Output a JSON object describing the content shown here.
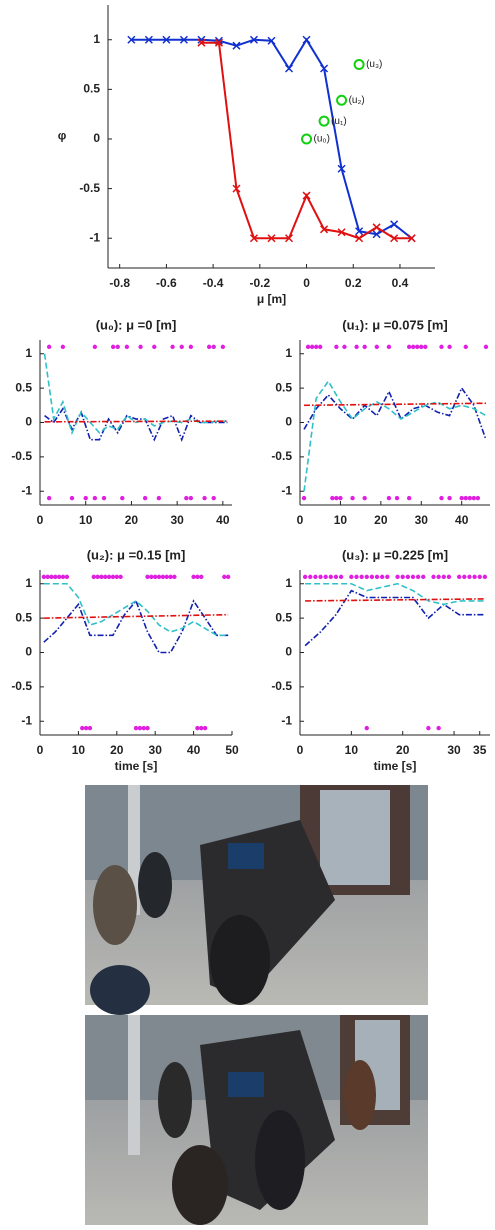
{
  "chart_data": [
    {
      "type": "line",
      "xlabel": "μ [m]",
      "ylabel": "φ",
      "xlim": [
        -0.85,
        0.55
      ],
      "ylim": [
        -1.3,
        1.35
      ],
      "xticks": [
        -0.8,
        -0.6,
        -0.4,
        -0.2,
        0,
        0.2,
        0.4
      ],
      "yticks": [
        -1,
        -0.5,
        0,
        0.5,
        1
      ],
      "series": [
        {
          "color": "#1030d0",
          "style": "solid",
          "marker": "x",
          "x": [
            -0.75,
            -0.675,
            -0.6,
            -0.525,
            -0.45,
            -0.375,
            -0.3,
            -0.225,
            -0.15,
            -0.075,
            0,
            0.075,
            0.15,
            0.225,
            0.3,
            0.375,
            0.45
          ],
          "values": [
            1,
            1,
            1,
            1,
            1,
            0.99,
            0.94,
            1,
            0.99,
            0.71,
            1,
            0.71,
            -0.3,
            -0.93,
            -0.96,
            -0.86,
            -1
          ]
        },
        {
          "color": "#e01010",
          "style": "solid",
          "marker": "x",
          "x": [
            -0.45,
            -0.375,
            -0.3,
            -0.225,
            -0.15,
            -0.075,
            0,
            0.075,
            0.15,
            0.225,
            0.3,
            0.375,
            0.45
          ],
          "values": [
            0.97,
            0.97,
            -0.5,
            -1,
            -1,
            -1,
            -0.57,
            -0.91,
            -0.94,
            -1,
            -0.89,
            -1,
            -1
          ]
        },
        {
          "color": "#10d010",
          "style": "none",
          "marker": "circle",
          "x": [
            0,
            0.075,
            0.15,
            0.225
          ],
          "values": [
            0,
            0.18,
            0.39,
            0.75
          ],
          "labels": [
            "(u₀)",
            "(u₁)",
            "(u₂)",
            "(u₃)"
          ]
        }
      ]
    },
    {
      "type": "line",
      "title": "(u₀): μ =0 [m]",
      "xlim": [
        0,
        42
      ],
      "ylim": [
        -1.2,
        1.2
      ],
      "xticks": [
        0,
        10,
        20,
        30,
        40
      ],
      "yticks": [
        -1,
        -0.5,
        0,
        0.5,
        1
      ],
      "series": [
        {
          "color": "#1020b0",
          "style": "dashdot",
          "marker": "none",
          "x": [
            1,
            3,
            5,
            7,
            9,
            11,
            13,
            15,
            17,
            19,
            21,
            23,
            25,
            27,
            29,
            31,
            33,
            35,
            37,
            39,
            41
          ],
          "values": [
            0.1,
            0,
            0.2,
            -0.1,
            0.15,
            -0.25,
            -0.25,
            0.05,
            -0.15,
            0.1,
            0.05,
            0.05,
            -0.25,
            0.05,
            0.1,
            -0.25,
            0.1,
            0,
            0,
            0,
            0
          ]
        },
        {
          "color": "#30c0c8",
          "style": "dashed",
          "marker": "none",
          "x": [
            1,
            3,
            5,
            7,
            9,
            11,
            13,
            15,
            17,
            19,
            21,
            23,
            25,
            27,
            29,
            31,
            33,
            35,
            37,
            39,
            41
          ],
          "values": [
            1,
            0.05,
            0.3,
            -0.15,
            0.15,
            0,
            -0.15,
            -0.05,
            -0.1,
            0.1,
            0,
            0.05,
            -0.05,
            0,
            0.02,
            0,
            0.05,
            0,
            0,
            0.02,
            0.02
          ]
        },
        {
          "color": "#e01010",
          "style": "dashdot",
          "marker": "none",
          "x": [
            1,
            41
          ],
          "values": [
            0.01,
            0.02
          ]
        },
        {
          "color": "#e020e0",
          "style": "none",
          "marker": "dot",
          "x": [
            2,
            5,
            12,
            16,
            17,
            19,
            22,
            25,
            29,
            31,
            33,
            37,
            38,
            40
          ],
          "values": [
            1.1,
            1.1,
            1.1,
            1.1,
            1.1,
            1.1,
            1.1,
            1.1,
            1.1,
            1.1,
            1.1,
            1.1,
            1.1,
            1.1
          ]
        },
        {
          "color": "#e020e0",
          "style": "none",
          "marker": "dot",
          "x": [
            2,
            7,
            10,
            12,
            14,
            18,
            23,
            26,
            32,
            33,
            36,
            38
          ],
          "values": [
            -1.1,
            -1.1,
            -1.1,
            -1.1,
            -1.1,
            -1.1,
            -1.1,
            -1.1,
            -1.1,
            -1.1,
            -1.1,
            -1.1
          ]
        }
      ]
    },
    {
      "type": "line",
      "title": "(u₁): μ =0.075 [m]",
      "xlim": [
        0,
        47
      ],
      "ylim": [
        -1.2,
        1.2
      ],
      "xticks": [
        0,
        10,
        20,
        30,
        40
      ],
      "yticks": [
        -1,
        -0.5,
        0,
        0.5,
        1
      ],
      "series": [
        {
          "color": "#1020b0",
          "style": "dashdot",
          "marker": "none",
          "x": [
            1,
            4,
            7,
            10,
            13,
            16,
            19,
            22,
            25,
            28,
            31,
            34,
            37,
            40,
            43,
            46
          ],
          "values": [
            -0.1,
            0.2,
            0.4,
            0.2,
            0.05,
            0.25,
            0.1,
            0.45,
            0.05,
            0.2,
            0.25,
            0.15,
            0.1,
            0.5,
            0.25,
            -0.25
          ]
        },
        {
          "color": "#30c0c8",
          "style": "dashed",
          "marker": "none",
          "x": [
            1,
            4,
            7,
            10,
            13,
            16,
            19,
            22,
            25,
            28,
            31,
            34,
            37,
            40,
            43,
            46
          ],
          "values": [
            -1,
            0.35,
            0.6,
            0.3,
            0.05,
            0.2,
            0.3,
            0.2,
            0.05,
            0.15,
            0.25,
            0.3,
            0.2,
            0.25,
            0.2,
            0.1
          ]
        },
        {
          "color": "#e01010",
          "style": "dashdot",
          "marker": "none",
          "x": [
            1,
            46
          ],
          "values": [
            0.25,
            0.28
          ]
        },
        {
          "color": "#e020e0",
          "style": "none",
          "marker": "dot",
          "x": [
            2,
            3,
            4,
            5,
            9,
            11,
            14,
            16,
            19,
            22,
            27,
            28,
            29,
            30,
            31,
            35,
            37,
            41,
            46
          ],
          "values": [
            1.1,
            1.1,
            1.1,
            1.1,
            1.1,
            1.1,
            1.1,
            1.1,
            1.1,
            1.1,
            1.1,
            1.1,
            1.1,
            1.1,
            1.1,
            1.1,
            1.1,
            1.1,
            1.1
          ]
        },
        {
          "color": "#e020e0",
          "style": "none",
          "marker": "dot",
          "x": [
            1,
            8,
            9,
            10,
            13,
            16,
            22,
            24,
            27,
            35,
            37,
            40,
            41,
            42,
            43,
            44
          ],
          "values": [
            -1.1,
            -1.1,
            -1.1,
            -1.1,
            -1.1,
            -1.1,
            -1.1,
            -1.1,
            -1.1,
            -1.1,
            -1.1,
            -1.1,
            -1.1,
            -1.1,
            -1.1,
            -1.1
          ]
        }
      ]
    },
    {
      "type": "line",
      "title": "(u₂): μ =0.15 [m]",
      "xlabel": "time [s]",
      "xlim": [
        0,
        50
      ],
      "ylim": [
        -1.2,
        1.2
      ],
      "xticks": [
        0,
        10,
        20,
        30,
        40,
        50
      ],
      "yticks": [
        -1,
        -0.5,
        0,
        0.5,
        1
      ],
      "series": [
        {
          "color": "#1020b0",
          "style": "dashdot",
          "marker": "none",
          "x": [
            1,
            4,
            7,
            10,
            13,
            16,
            19,
            22,
            25,
            28,
            31,
            34,
            37,
            40,
            43,
            46,
            49
          ],
          "values": [
            0.15,
            0.3,
            0.5,
            0.7,
            0.25,
            0.25,
            0.25,
            0.55,
            0.75,
            0.3,
            0,
            0,
            0.3,
            0.75,
            0.5,
            0.25,
            0.25
          ]
        },
        {
          "color": "#30c0c8",
          "style": "dashed",
          "marker": "none",
          "x": [
            1,
            4,
            7,
            10,
            13,
            16,
            19,
            22,
            25,
            28,
            31,
            34,
            37,
            40,
            43,
            46,
            49
          ],
          "values": [
            1,
            1,
            1,
            0.8,
            0.4,
            0.45,
            0.55,
            0.65,
            0.75,
            0.6,
            0.4,
            0.3,
            0.35,
            0.45,
            0.35,
            0.25,
            0.25
          ]
        },
        {
          "color": "#e01010",
          "style": "dashdot",
          "marker": "none",
          "x": [
            1,
            49
          ],
          "values": [
            0.5,
            0.55
          ]
        },
        {
          "color": "#e020e0",
          "style": "none",
          "marker": "dot",
          "x": [
            1,
            2,
            3,
            4,
            5,
            6,
            7,
            14,
            15,
            16,
            17,
            18,
            19,
            20,
            21,
            28,
            29,
            30,
            31,
            32,
            33,
            34,
            35,
            40,
            41,
            42,
            48,
            49
          ],
          "values": [
            1.1,
            1.1,
            1.1,
            1.1,
            1.1,
            1.1,
            1.1,
            1.1,
            1.1,
            1.1,
            1.1,
            1.1,
            1.1,
            1.1,
            1.1,
            1.1,
            1.1,
            1.1,
            1.1,
            1.1,
            1.1,
            1.1,
            1.1,
            1.1,
            1.1,
            1.1,
            1.1,
            1.1
          ]
        },
        {
          "color": "#e020e0",
          "style": "none",
          "marker": "dot",
          "x": [
            11,
            12,
            13,
            25,
            26,
            27,
            28,
            41,
            42,
            43
          ],
          "values": [
            -1.1,
            -1.1,
            -1.1,
            -1.1,
            -1.1,
            -1.1,
            -1.1,
            -1.1,
            -1.1,
            -1.1
          ]
        }
      ]
    },
    {
      "type": "line",
      "title": "(u₃): μ =0.225 [m]",
      "xlabel": "time [s]",
      "xlim": [
        0,
        37
      ],
      "ylim": [
        -1.2,
        1.2
      ],
      "xticks": [
        0,
        10,
        20,
        30,
        35
      ],
      "yticks": [
        -1,
        -0.5,
        0,
        0.5,
        1
      ],
      "series": [
        {
          "color": "#1020b0",
          "style": "dashdot",
          "marker": "none",
          "x": [
            1,
            4,
            7,
            10,
            13,
            16,
            19,
            22,
            25,
            28,
            31,
            34,
            36
          ],
          "values": [
            0.1,
            0.3,
            0.55,
            0.9,
            0.8,
            0.8,
            0.8,
            0.8,
            0.5,
            0.7,
            0.55,
            0.55,
            0.55
          ]
        },
        {
          "color": "#30c0c8",
          "style": "dashed",
          "marker": "none",
          "x": [
            1,
            4,
            7,
            10,
            13,
            16,
            19,
            22,
            25,
            28,
            31,
            34,
            36
          ],
          "values": [
            1,
            1,
            1,
            1,
            0.9,
            0.95,
            1,
            0.9,
            0.75,
            0.7,
            0.75,
            0.75,
            0.75
          ]
        },
        {
          "color": "#e01010",
          "style": "dashdot",
          "marker": "none",
          "x": [
            1,
            36
          ],
          "values": [
            0.75,
            0.78
          ]
        },
        {
          "color": "#e020e0",
          "style": "none",
          "marker": "dot",
          "x": [
            1,
            2,
            3,
            4,
            5,
            6,
            7,
            8,
            10,
            11,
            12,
            13,
            14,
            15,
            16,
            17,
            19,
            20,
            21,
            22,
            23,
            24,
            26,
            27,
            28,
            29,
            31,
            32,
            33,
            34,
            35,
            36
          ],
          "values": [
            1.1,
            1.1,
            1.1,
            1.1,
            1.1,
            1.1,
            1.1,
            1.1,
            1.1,
            1.1,
            1.1,
            1.1,
            1.1,
            1.1,
            1.1,
            1.1,
            1.1,
            1.1,
            1.1,
            1.1,
            1.1,
            1.1,
            1.1,
            1.1,
            1.1,
            1.1,
            1.1,
            1.1,
            1.1,
            1.1,
            1.1,
            1.1
          ]
        },
        {
          "color": "#e020e0",
          "style": "none",
          "marker": "dot",
          "x": [
            13,
            25,
            27
          ],
          "values": [
            -1.1,
            -1.1,
            -1.1
          ]
        }
      ]
    }
  ]
}
